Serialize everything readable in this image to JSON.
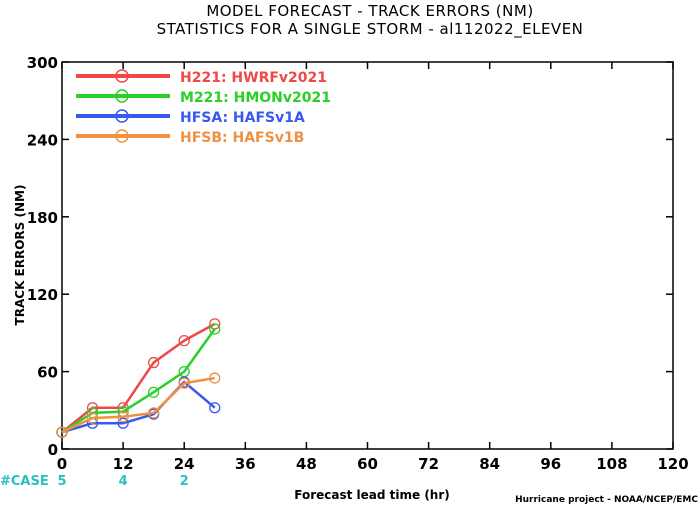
{
  "chart_data": {
    "type": "line",
    "title": "MODEL FORECAST - TRACK ERRORS (NM)",
    "subtitle": "STATISTICS FOR A SINGLE STORM - al112022_ELEVEN",
    "xlabel": "Forecast lead time (hr)",
    "ylabel": "TRACK ERRORS (NM)",
    "xlim": [
      0,
      120
    ],
    "ylim": [
      0,
      300
    ],
    "xticks": [
      "0",
      "12",
      "24",
      "36",
      "48",
      "60",
      "72",
      "84",
      "96",
      "108",
      "120"
    ],
    "yticks": [
      "0",
      "60",
      "120",
      "180",
      "240",
      "300"
    ],
    "grid": false,
    "legend_position": "top-left",
    "series": [
      {
        "name": "H221: HWRFv2021",
        "color": "#f04848",
        "x": [
          0,
          6,
          12,
          18,
          24,
          30
        ],
        "y": [
          13,
          32,
          32,
          67,
          84,
          97
        ]
      },
      {
        "name": "M221: HMONv2021",
        "color": "#28d028",
        "x": [
          0,
          6,
          12,
          18,
          24,
          30
        ],
        "y": [
          13,
          28,
          29,
          44,
          60,
          93
        ]
      },
      {
        "name": "HFSA: HAFSv1A",
        "color": "#3858f0",
        "x": [
          0,
          6,
          12,
          18,
          24,
          30
        ],
        "y": [
          13,
          20,
          20,
          27,
          52,
          32
        ]
      },
      {
        "name": "HFSB: HAFSv1B",
        "color": "#f09040",
        "x": [
          0,
          6,
          12,
          18,
          24,
          30
        ],
        "y": [
          13,
          24,
          25,
          28,
          51,
          55
        ]
      }
    ],
    "cases": {
      "label": "#CASE",
      "items": [
        {
          "x": 0,
          "count": "5"
        },
        {
          "x": 12,
          "count": "4"
        },
        {
          "x": 24,
          "count": "2"
        }
      ]
    },
    "credit": "Hurricane project - NOAA/NCEP/EMC"
  }
}
